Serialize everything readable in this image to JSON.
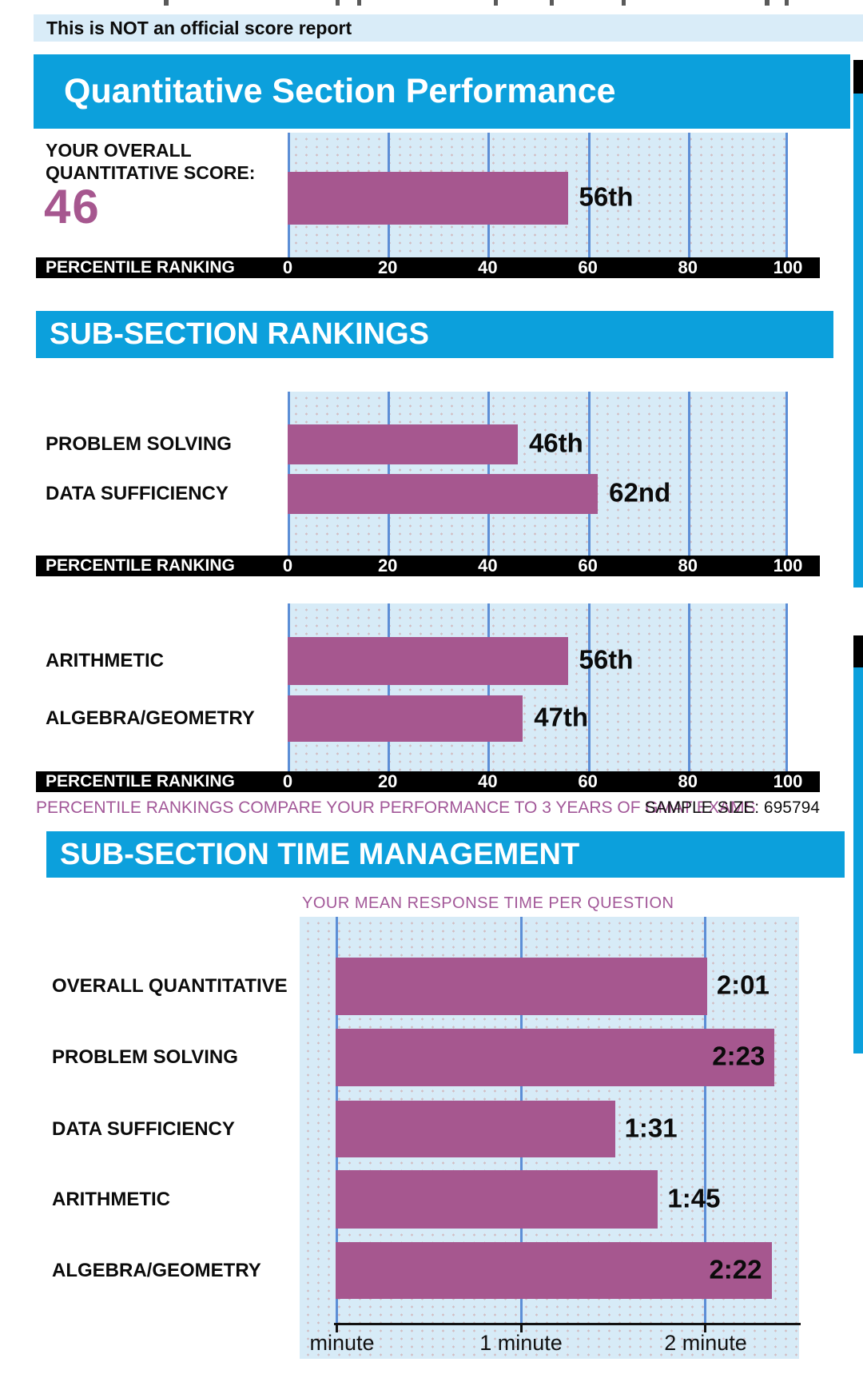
{
  "colors": {
    "header_blue": "#0ca0dc",
    "banner_bg": "#d9ecf8",
    "plot_bg": "#d7ebf7",
    "gridline_blue": "#5c8ed6",
    "bar_plum": "#a6578f",
    "accent_purple": "#a25798",
    "axis_bar_black": "#000000"
  },
  "banner": {
    "text": "This is NOT an official score report"
  },
  "quant_section": {
    "title": "Quantitative Section Performance",
    "score_label_line1": "YOUR OVERALL",
    "score_label_line2": "QUANTITATIVE SCORE:",
    "score_value": "46"
  },
  "rankings_section": {
    "title": "SUB-SECTION RANKINGS"
  },
  "time_section": {
    "title": "SUB-SECTION TIME MANAGEMENT",
    "subtitle": "YOUR MEAN RESPONSE TIME PER QUESTION"
  },
  "percentile_axis": {
    "label": "PERCENTILE RANKING",
    "ticks": [
      "0",
      "20",
      "40",
      "60",
      "80",
      "100"
    ]
  },
  "footnote": {
    "left": "PERCENTILE RANKINGS COMPARE YOUR PERFORMANCE TO 3 YEARS OF GMAT EXAMS",
    "right": "SAMPLE SIZE: 695794"
  },
  "chart_data": [
    {
      "id": "overall-quantitative-percentile",
      "type": "bar",
      "orientation": "horizontal",
      "title": "Quantitative Section Performance",
      "categories": [
        "OVERALL QUANTITATIVE SCORE (46)"
      ],
      "values": [
        56
      ],
      "value_labels": [
        "56th"
      ],
      "xlabel": "PERCENTILE RANKING",
      "xlim": [
        0,
        100
      ],
      "x_ticks": [
        0,
        20,
        40,
        60,
        80,
        100
      ],
      "grid": "vertical"
    },
    {
      "id": "subsection-rankings-question-type",
      "type": "bar",
      "orientation": "horizontal",
      "title": "SUB-SECTION RANKINGS",
      "categories": [
        "PROBLEM SOLVING",
        "DATA SUFFICIENCY"
      ],
      "values": [
        46,
        62
      ],
      "value_labels": [
        "46th",
        "62nd"
      ],
      "xlabel": "PERCENTILE RANKING",
      "xlim": [
        0,
        100
      ],
      "x_ticks": [
        0,
        20,
        40,
        60,
        80,
        100
      ],
      "grid": "vertical"
    },
    {
      "id": "subsection-rankings-content-area",
      "type": "bar",
      "orientation": "horizontal",
      "title": "SUB-SECTION RANKINGS",
      "categories": [
        "ARITHMETIC",
        "ALGEBRA/GEOMETRY"
      ],
      "values": [
        56,
        47
      ],
      "value_labels": [
        "56th",
        "47th"
      ],
      "xlabel": "PERCENTILE RANKING",
      "xlim": [
        0,
        100
      ],
      "x_ticks": [
        0,
        20,
        40,
        60,
        80,
        100
      ],
      "grid": "vertical"
    },
    {
      "id": "subsection-time-management",
      "type": "bar",
      "orientation": "horizontal",
      "title": "SUB-SECTION TIME MANAGEMENT",
      "subtitle": "YOUR MEAN RESPONSE TIME PER QUESTION",
      "categories": [
        "OVERALL QUANTITATIVE",
        "PROBLEM SOLVING",
        "DATA SUFFICIENCY",
        "ARITHMETIC",
        "ALGEBRA/GEOMETRY"
      ],
      "values_seconds": [
        121,
        143,
        91,
        105,
        142
      ],
      "value_labels": [
        "2:01",
        "2:23",
        "1:31",
        "1:45",
        "2:22"
      ],
      "x_ticks": [
        "minute",
        "1 minute",
        "2 minute"
      ],
      "x_tick_minutes": [
        0,
        1,
        2
      ],
      "xlim_minutes": [
        0,
        2.52
      ],
      "grid": "vertical"
    }
  ]
}
